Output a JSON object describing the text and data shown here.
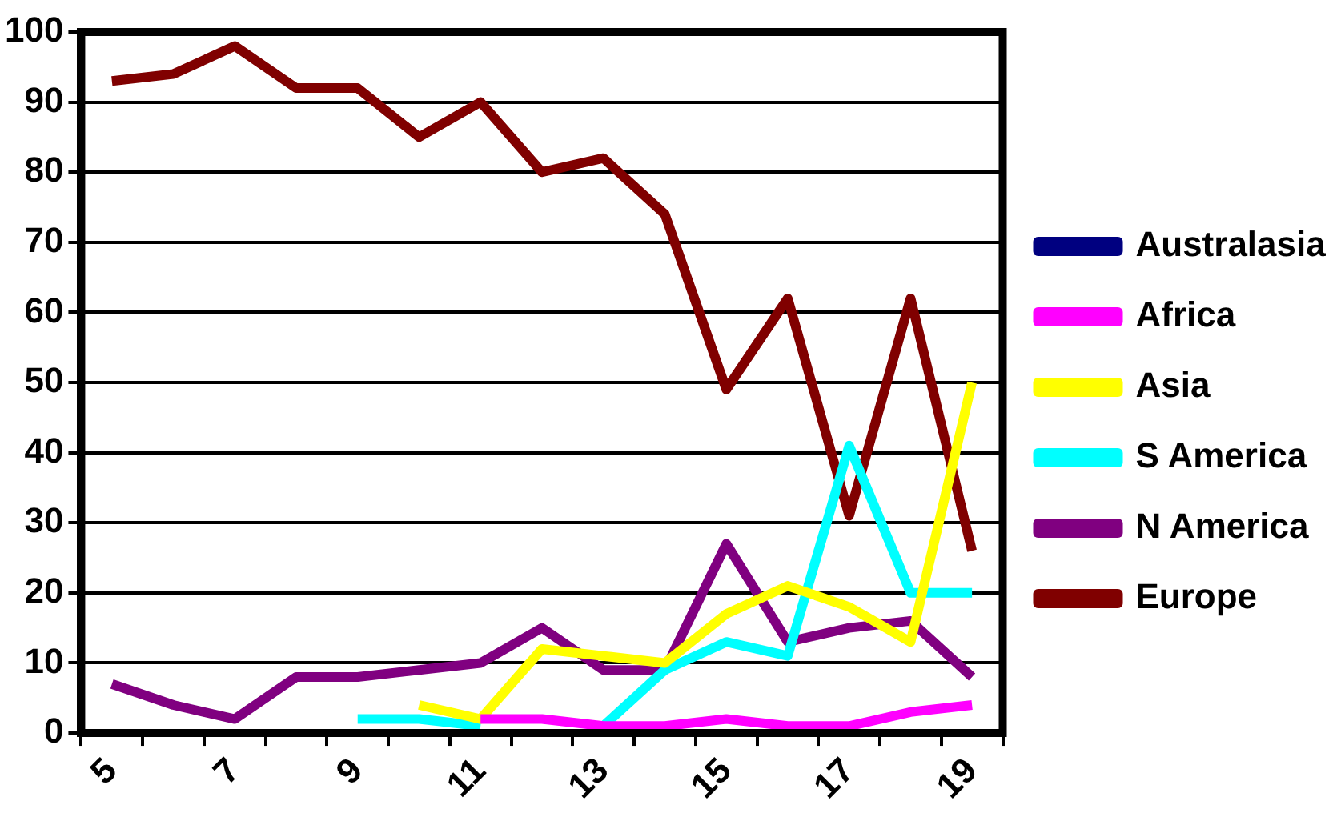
{
  "chart_data": {
    "type": "line",
    "categories": [
      "5",
      null,
      "7",
      null,
      "9",
      null,
      "11",
      null,
      "13",
      null,
      "15",
      null,
      "17",
      null,
      "19"
    ],
    "series": [
      {
        "name": "Australasia",
        "color": "#000080",
        "values": [
          null,
          null,
          null,
          null,
          null,
          null,
          null,
          null,
          null,
          null,
          null,
          null,
          null,
          null,
          null
        ]
      },
      {
        "name": "Africa",
        "color": "#ff00ff",
        "values": [
          null,
          null,
          null,
          null,
          null,
          null,
          2,
          2,
          1,
          1,
          2,
          1,
          1,
          3,
          4
        ]
      },
      {
        "name": "Asia",
        "color": "#ffff00",
        "values": [
          null,
          null,
          null,
          null,
          null,
          4,
          2,
          12,
          11,
          10,
          17,
          21,
          18,
          13,
          50
        ]
      },
      {
        "name": "S America",
        "color": "#00ffff",
        "values": [
          null,
          null,
          null,
          null,
          2,
          2,
          1,
          null,
          1,
          9,
          13,
          11,
          41,
          20,
          20
        ]
      },
      {
        "name": "N America",
        "color": "#800080",
        "values": [
          7,
          4,
          2,
          8,
          8,
          9,
          10,
          15,
          9,
          9,
          27,
          13,
          15,
          16,
          8
        ]
      },
      {
        "name": "Europe",
        "color": "#800000",
        "values": [
          93,
          94,
          98,
          92,
          92,
          85,
          90,
          80,
          82,
          74,
          49,
          62,
          31,
          62,
          26
        ]
      }
    ],
    "ylim": [
      0,
      100
    ],
    "yticks": [
      0,
      10,
      20,
      30,
      40,
      50,
      60,
      70,
      80,
      90,
      100
    ],
    "grid": "y",
    "legend": "right",
    "marker": "none",
    "line_style": "solid"
  }
}
